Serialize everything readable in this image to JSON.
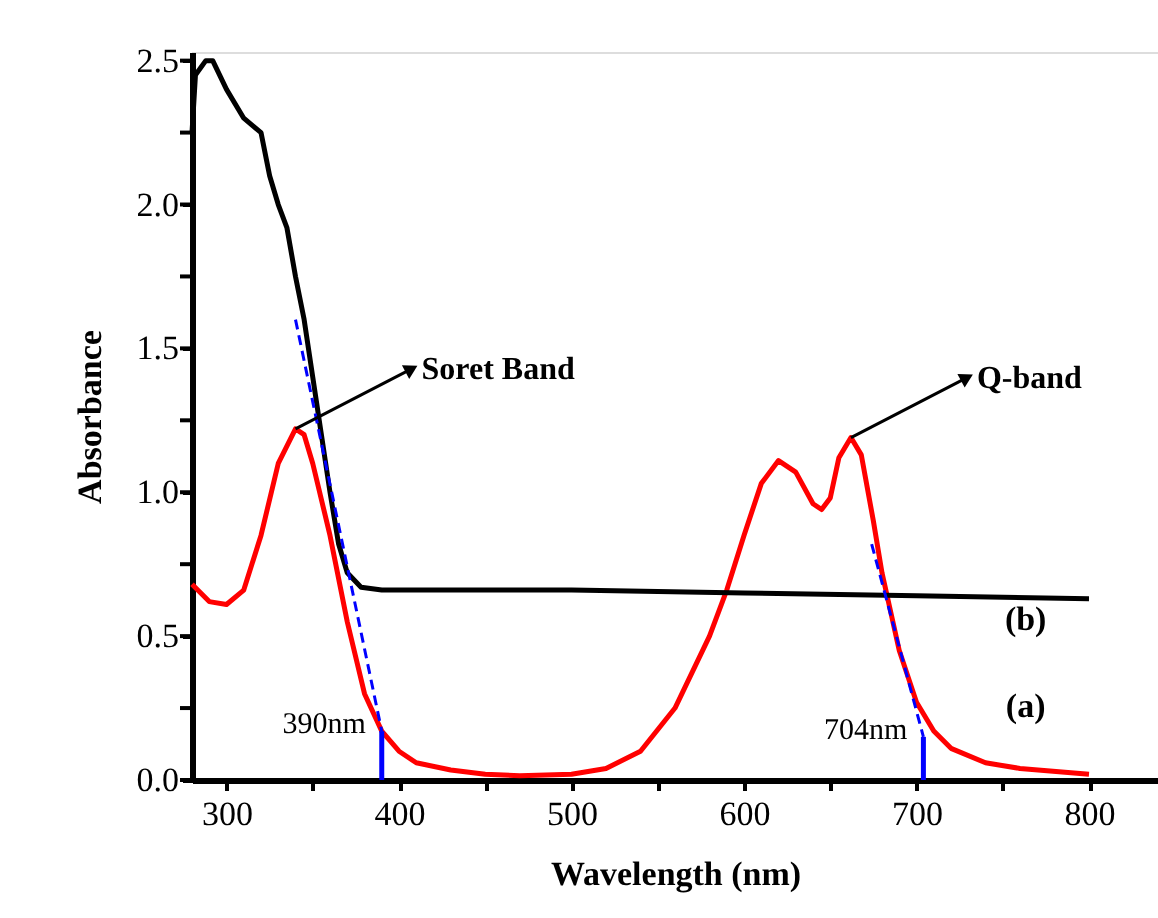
{
  "chart_data": {
    "type": "line",
    "xlabel": "Wavelength (nm)",
    "ylabel": "Absorbance",
    "xlim": [
      280,
      840
    ],
    "ylim": [
      0,
      2.53
    ],
    "xticks": [
      300,
      {
        "value": 350,
        "label": null
      },
      400,
      {
        "value": 450,
        "label": null
      },
      500,
      {
        "value": 550,
        "label": null
      },
      600,
      {
        "value": 650,
        "label": null
      },
      700,
      {
        "value": 750,
        "label": null
      },
      800
    ],
    "yticks": [
      {
        "value": 0.0,
        "label": "0.0"
      },
      {
        "value": 0.25,
        "label": null
      },
      {
        "value": 0.5,
        "label": "0.5"
      },
      {
        "value": 0.75,
        "label": null
      },
      {
        "value": 1.0,
        "label": "1.0"
      },
      {
        "value": 1.25,
        "label": null
      },
      {
        "value": 1.5,
        "label": "1.5"
      },
      {
        "value": 1.75,
        "label": null
      },
      {
        "value": 2.0,
        "label": "2.0"
      },
      {
        "value": 2.25,
        "label": null
      },
      {
        "value": 2.5,
        "label": "2.5"
      }
    ],
    "grid": false,
    "line_style": "solid",
    "marker": "none",
    "series": [
      {
        "color": "#ff0000",
        "x": [
          280,
          290,
          300,
          310,
          320,
          330,
          340,
          345,
          350,
          360,
          370,
          380,
          390,
          400,
          410,
          430,
          450,
          470,
          500,
          520,
          540,
          560,
          580,
          590,
          600,
          610,
          620,
          630,
          640,
          645,
          650,
          655,
          662,
          668,
          675,
          680,
          690,
          700,
          710,
          720,
          740,
          760,
          800
        ],
        "values": [
          0.68,
          0.62,
          0.61,
          0.66,
          0.85,
          1.1,
          1.22,
          1.2,
          1.1,
          0.85,
          0.55,
          0.3,
          0.17,
          0.1,
          0.06,
          0.035,
          0.02,
          0.015,
          0.02,
          0.04,
          0.1,
          0.25,
          0.5,
          0.66,
          0.85,
          1.03,
          1.11,
          1.07,
          0.96,
          0.94,
          0.98,
          1.12,
          1.19,
          1.13,
          0.9,
          0.72,
          0.45,
          0.27,
          0.17,
          0.11,
          0.06,
          0.04,
          0.02
        ]
      },
      {
        "color": "#000000",
        "x": [
          280,
          282,
          288,
          292,
          300,
          310,
          320,
          325,
          330,
          335,
          340,
          345,
          350,
          355,
          360,
          365,
          370,
          378,
          390,
          500,
          600,
          700,
          800
        ],
        "values": [
          2.25,
          2.45,
          2.5,
          2.5,
          2.4,
          2.3,
          2.25,
          2.1,
          2.0,
          1.92,
          1.75,
          1.6,
          1.4,
          1.2,
          1.0,
          0.82,
          0.72,
          0.67,
          0.66,
          0.66,
          0.65,
          0.64,
          0.63
        ]
      },
      {
        "color": "#0000ff",
        "line_style": "dashed",
        "x": [
          340,
          390
        ],
        "values": [
          1.6,
          0.17
        ]
      },
      {
        "color": "#0000ff",
        "x": [
          390,
          390
        ],
        "values": [
          0,
          0.17
        ]
      },
      {
        "color": "#0000ff",
        "line_style": "dashed",
        "x": [
          674,
          704
        ],
        "values": [
          0.82,
          0.15
        ]
      },
      {
        "color": "#0000ff",
        "x": [
          704,
          704
        ],
        "values": [
          0,
          0.15
        ]
      }
    ],
    "annotations": [
      {
        "text": "Soret Band",
        "x": 340,
        "y": 1.22
      },
      {
        "text": "Q-band",
        "x": 662,
        "y": 1.19
      },
      {
        "text": "390nm",
        "x": 390,
        "y": 0.17
      },
      {
        "text": "704nm",
        "x": 704,
        "y": 0.15
      },
      "(a)",
      "(b)"
    ]
  }
}
